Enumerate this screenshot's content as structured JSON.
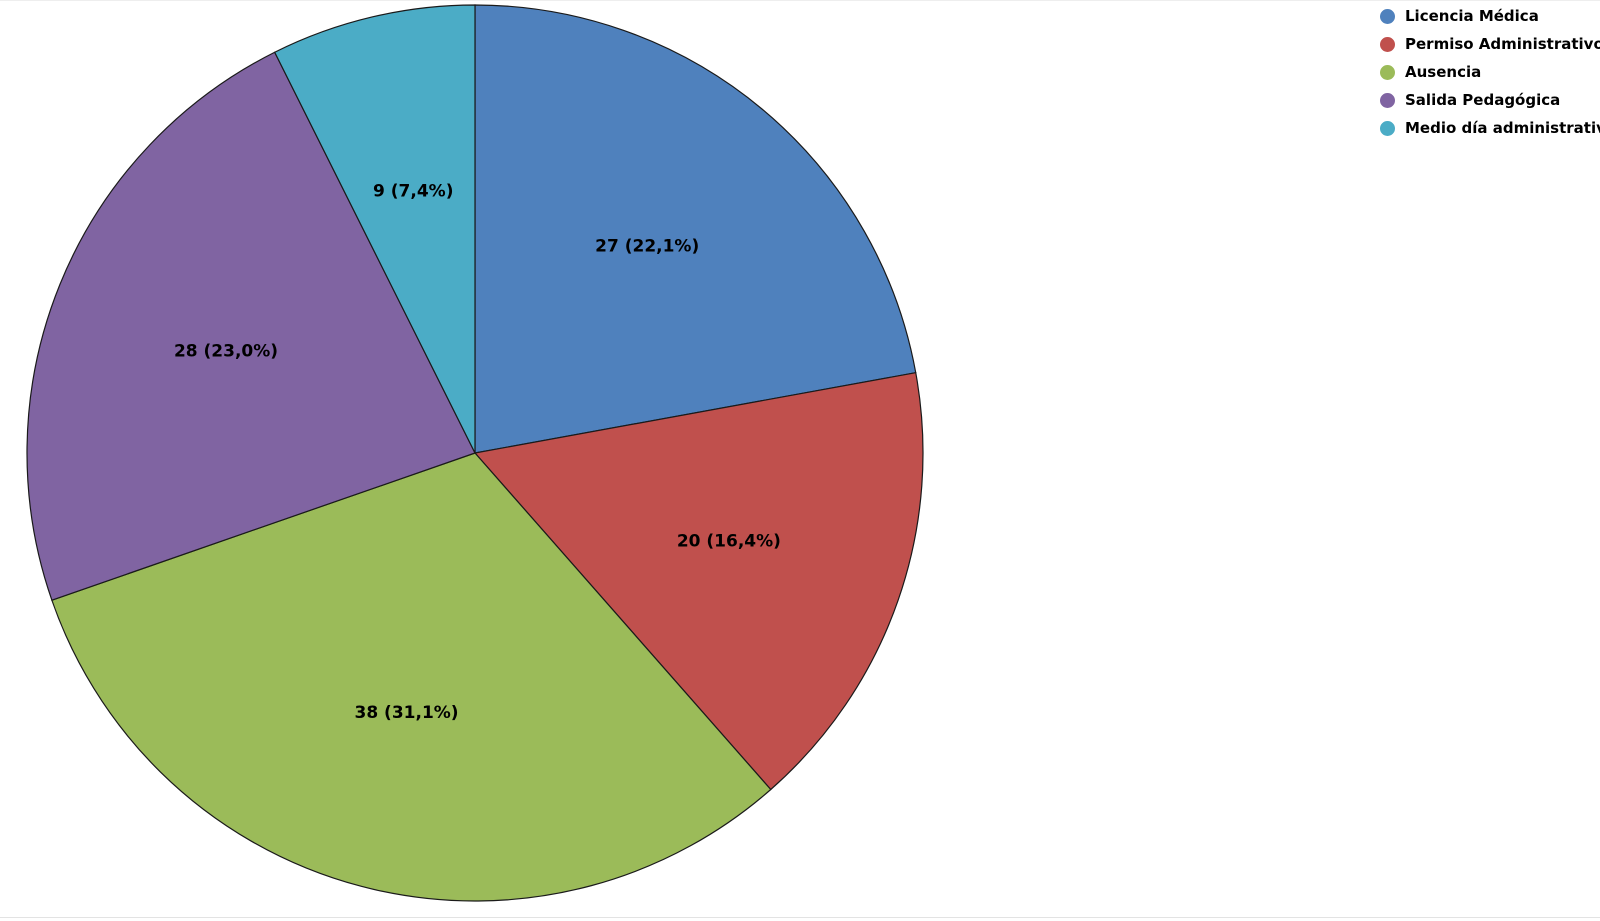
{
  "chart_data": {
    "type": "pie",
    "title": "",
    "legend_position": "top-right",
    "slices": [
      {
        "name": "Licencia Médica",
        "value": 27,
        "percent_label": "22,1%",
        "color": "#4F81BD"
      },
      {
        "name": "Permiso Administrativo",
        "value": 20,
        "percent_label": "16,4%",
        "color": "#C0504D"
      },
      {
        "name": "Ausencia",
        "value": 38,
        "percent_label": "31,1%",
        "color": "#9BBB59"
      },
      {
        "name": "Salida Pedagógica",
        "value": 28,
        "percent_label": "23,0%",
        "color": "#8064A2"
      },
      {
        "name": "Medio día administrativo",
        "value": 9,
        "percent_label": "7,4%",
        "color": "#4BACC6"
      }
    ]
  }
}
